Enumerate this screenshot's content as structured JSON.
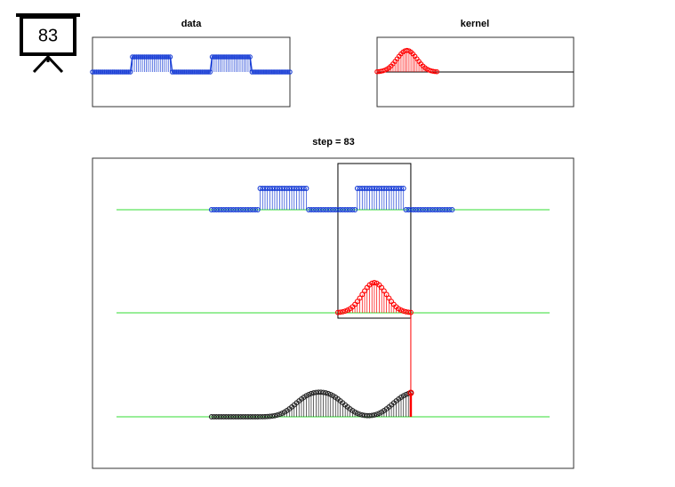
{
  "badge": "83",
  "chart_data": [
    {
      "type": "stem",
      "title": "data",
      "color": "#1a3fd6",
      "ylim": [
        -2.3,
        2.3
      ],
      "values": [
        0,
        0,
        0,
        0,
        0,
        0,
        0,
        0,
        0,
        0,
        0,
        0,
        0,
        0,
        0,
        0,
        0,
        0,
        0,
        0,
        1,
        1,
        1,
        1,
        1,
        1,
        1,
        1,
        1,
        1,
        1,
        1,
        1,
        1,
        1,
        1,
        1,
        1,
        1,
        1,
        0,
        0,
        0,
        0,
        0,
        0,
        0,
        0,
        0,
        0,
        0,
        0,
        0,
        0,
        0,
        0,
        0,
        0,
        0,
        0,
        1,
        1,
        1,
        1,
        1,
        1,
        1,
        1,
        1,
        1,
        1,
        1,
        1,
        1,
        1,
        1,
        1,
        1,
        1,
        1,
        0,
        0,
        0,
        0,
        0,
        0,
        0,
        0,
        0,
        0,
        0,
        0,
        0,
        0,
        0,
        0,
        0,
        0,
        0,
        0
      ]
    },
    {
      "type": "stem",
      "title": "kernel",
      "color": "#ff0000",
      "ylim": [
        -1.6,
        1.6
      ],
      "values": [
        0.011,
        0.02,
        0.034,
        0.056,
        0.089,
        0.135,
        0.198,
        0.278,
        0.375,
        0.487,
        0.607,
        0.726,
        0.835,
        0.923,
        0.98,
        1,
        0.98,
        0.923,
        0.835,
        0.726,
        0.607,
        0.487,
        0.375,
        0.278,
        0.198,
        0.135,
        0.089,
        0.056,
        0.034,
        0.02,
        0.011
      ]
    },
    {
      "type": "stem",
      "title": "step = 83",
      "xlim": [
        -48,
        150
      ],
      "baseline_color": "#33dd33",
      "series": [
        {
          "color": "#1a3fd6",
          "x": [
            1,
            2,
            3,
            4,
            5,
            6,
            7,
            8,
            9,
            10,
            11,
            12,
            13,
            14,
            15,
            16,
            17,
            18,
            19,
            20,
            21,
            22,
            23,
            24,
            25,
            26,
            27,
            28,
            29,
            30,
            31,
            32,
            33,
            34,
            35,
            36,
            37,
            38,
            39,
            40,
            41,
            42,
            43,
            44,
            45,
            46,
            47,
            48,
            49,
            50,
            51,
            52,
            53,
            54,
            55,
            56,
            57,
            58,
            59,
            60,
            61,
            62,
            63,
            64,
            65,
            66,
            67,
            68,
            69,
            70,
            71,
            72,
            73,
            74,
            75,
            76,
            77,
            78,
            79,
            80,
            81,
            82,
            83,
            84,
            85,
            86,
            87,
            88,
            89,
            90,
            91,
            92,
            93,
            94,
            95,
            96,
            97,
            98,
            99,
            100
          ],
          "values": [
            0,
            0,
            0,
            0,
            0,
            0,
            0,
            0,
            0,
            0,
            0,
            0,
            0,
            0,
            0,
            0,
            0,
            0,
            0,
            0,
            1,
            1,
            1,
            1,
            1,
            1,
            1,
            1,
            1,
            1,
            1,
            1,
            1,
            1,
            1,
            1,
            1,
            1,
            1,
            1,
            0,
            0,
            0,
            0,
            0,
            0,
            0,
            0,
            0,
            0,
            0,
            0,
            0,
            0,
            0,
            0,
            0,
            0,
            0,
            0,
            1,
            1,
            1,
            1,
            1,
            1,
            1,
            1,
            1,
            1,
            1,
            1,
            1,
            1,
            1,
            1,
            1,
            1,
            1,
            1,
            0,
            0,
            0,
            0,
            0,
            0,
            0,
            0,
            0,
            0,
            0,
            0,
            0,
            0,
            0,
            0,
            0,
            0,
            0,
            0
          ]
        },
        {
          "color": "#ff0000",
          "x": [
            53,
            54,
            55,
            56,
            57,
            58,
            59,
            60,
            61,
            62,
            63,
            64,
            65,
            66,
            67,
            68,
            69,
            70,
            71,
            72,
            73,
            74,
            75,
            76,
            77,
            78,
            79,
            80,
            81,
            82,
            83
          ],
          "values": [
            0.011,
            0.02,
            0.034,
            0.056,
            0.089,
            0.135,
            0.198,
            0.278,
            0.375,
            0.487,
            0.607,
            0.726,
            0.835,
            0.923,
            0.98,
            1,
            0.98,
            0.923,
            0.835,
            0.726,
            0.607,
            0.487,
            0.375,
            0.278,
            0.198,
            0.135,
            0.089,
            0.056,
            0.034,
            0.02,
            0.011
          ]
        },
        {
          "color": "#222222",
          "x": [
            1,
            2,
            3,
            4,
            5,
            6,
            7,
            8,
            9,
            10,
            11,
            12,
            13,
            14,
            15,
            16,
            17,
            18,
            19,
            20,
            21,
            22,
            23,
            24,
            25,
            26,
            27,
            28,
            29,
            30,
            31,
            32,
            33,
            34,
            35,
            36,
            37,
            38,
            39,
            40,
            41,
            42,
            43,
            44,
            45,
            46,
            47,
            48,
            49,
            50,
            51,
            52,
            53,
            54,
            55,
            56,
            57,
            58,
            59,
            60,
            61,
            62,
            63,
            64,
            65,
            66,
            67,
            68,
            69,
            70,
            71,
            72,
            73,
            74,
            75,
            76,
            77,
            78,
            79,
            80,
            81,
            82,
            83
          ],
          "values": [
            0,
            0,
            0,
            0,
            0,
            0,
            0,
            0,
            0,
            0,
            0,
            0,
            0,
            0,
            0,
            0,
            0,
            0,
            0,
            0,
            0.001,
            0.002,
            0.005,
            0.01,
            0.017,
            0.028,
            0.043,
            0.066,
            0.096,
            0.135,
            0.183,
            0.241,
            0.308,
            0.382,
            0.46,
            0.54,
            0.618,
            0.692,
            0.759,
            0.817,
            0.865,
            0.902,
            0.929,
            0.947,
            0.956,
            0.956,
            0.947,
            0.929,
            0.902,
            0.865,
            0.817,
            0.759,
            0.692,
            0.618,
            0.54,
            0.46,
            0.382,
            0.308,
            0.241,
            0.183,
            0.136,
            0.098,
            0.071,
            0.053,
            0.045,
            0.045,
            0.053,
            0.071,
            0.098,
            0.136,
            0.183,
            0.241,
            0.308,
            0.382,
            0.46,
            0.54,
            0.618,
            0.692,
            0.759,
            0.817,
            0.865,
            0.902,
            0.929
          ]
        }
      ]
    }
  ]
}
